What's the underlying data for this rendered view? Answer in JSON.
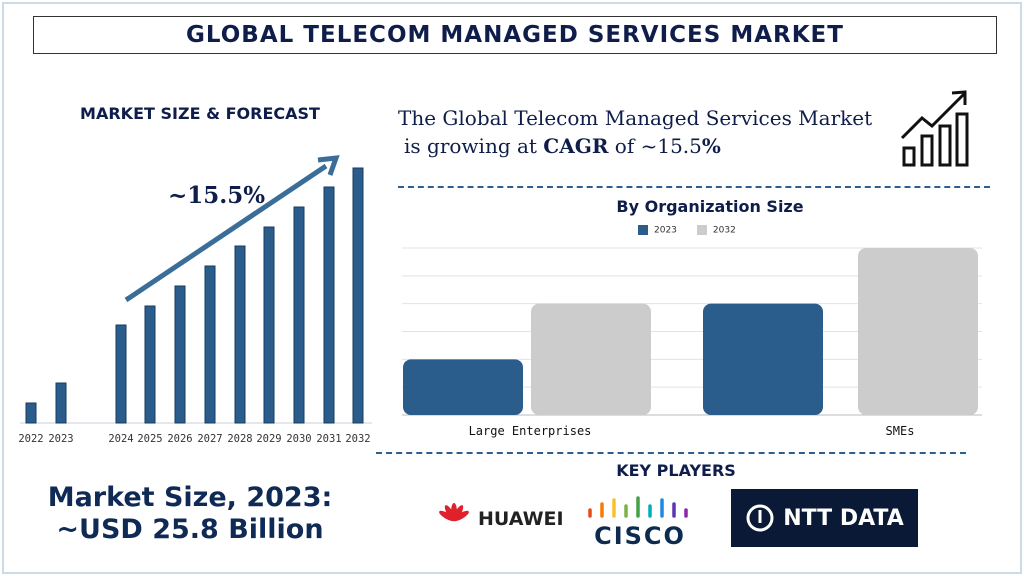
{
  "title": "GLOBAL TELECOM MANAGED SERVICES MARKET",
  "left_heading": "MARKET SIZE & FORECAST",
  "cagr_label": "~15.5%",
  "headline": {
    "line1": "The Global Telecom Managed Services Market",
    "line2_prefix": "is growing at ",
    "line2_bold": "CAGR",
    "line2_mid": " of ~15.5",
    "line2_suffix": "%"
  },
  "market_size": {
    "line1": "Market Size, 2023:",
    "line2": "~USD 25.8 Billion"
  },
  "key_players_heading": "KEY PLAYERS",
  "key_players": [
    "HUAWEI",
    "CISCO",
    "NTT DATA"
  ],
  "colors": {
    "primary": "#2a5d8c",
    "secondary": "#cccccc",
    "heading": "#0f1d4a"
  },
  "icons": [
    "growth-chart-icon"
  ],
  "chart_data": [
    {
      "type": "bar",
      "title": "",
      "categories": [
        "2022",
        "2023",
        "2024",
        "2025",
        "2026",
        "2027",
        "2028",
        "2029",
        "2030",
        "2031",
        "2032"
      ],
      "values": [
        20,
        40,
        98,
        117,
        137,
        157,
        177,
        196,
        216,
        236,
        255
      ],
      "grid": false,
      "annotation": "~15.5%"
    },
    {
      "type": "bar",
      "title": "By Organization Size",
      "categories": [
        "Large Enterprises",
        "SMEs"
      ],
      "series": [
        {
          "name": "2023",
          "values": [
            2,
            4
          ]
        },
        {
          "name": "2032",
          "values": [
            4,
            6
          ]
        }
      ],
      "ylim": [
        0,
        6
      ],
      "grid": true,
      "legend": "top"
    }
  ]
}
